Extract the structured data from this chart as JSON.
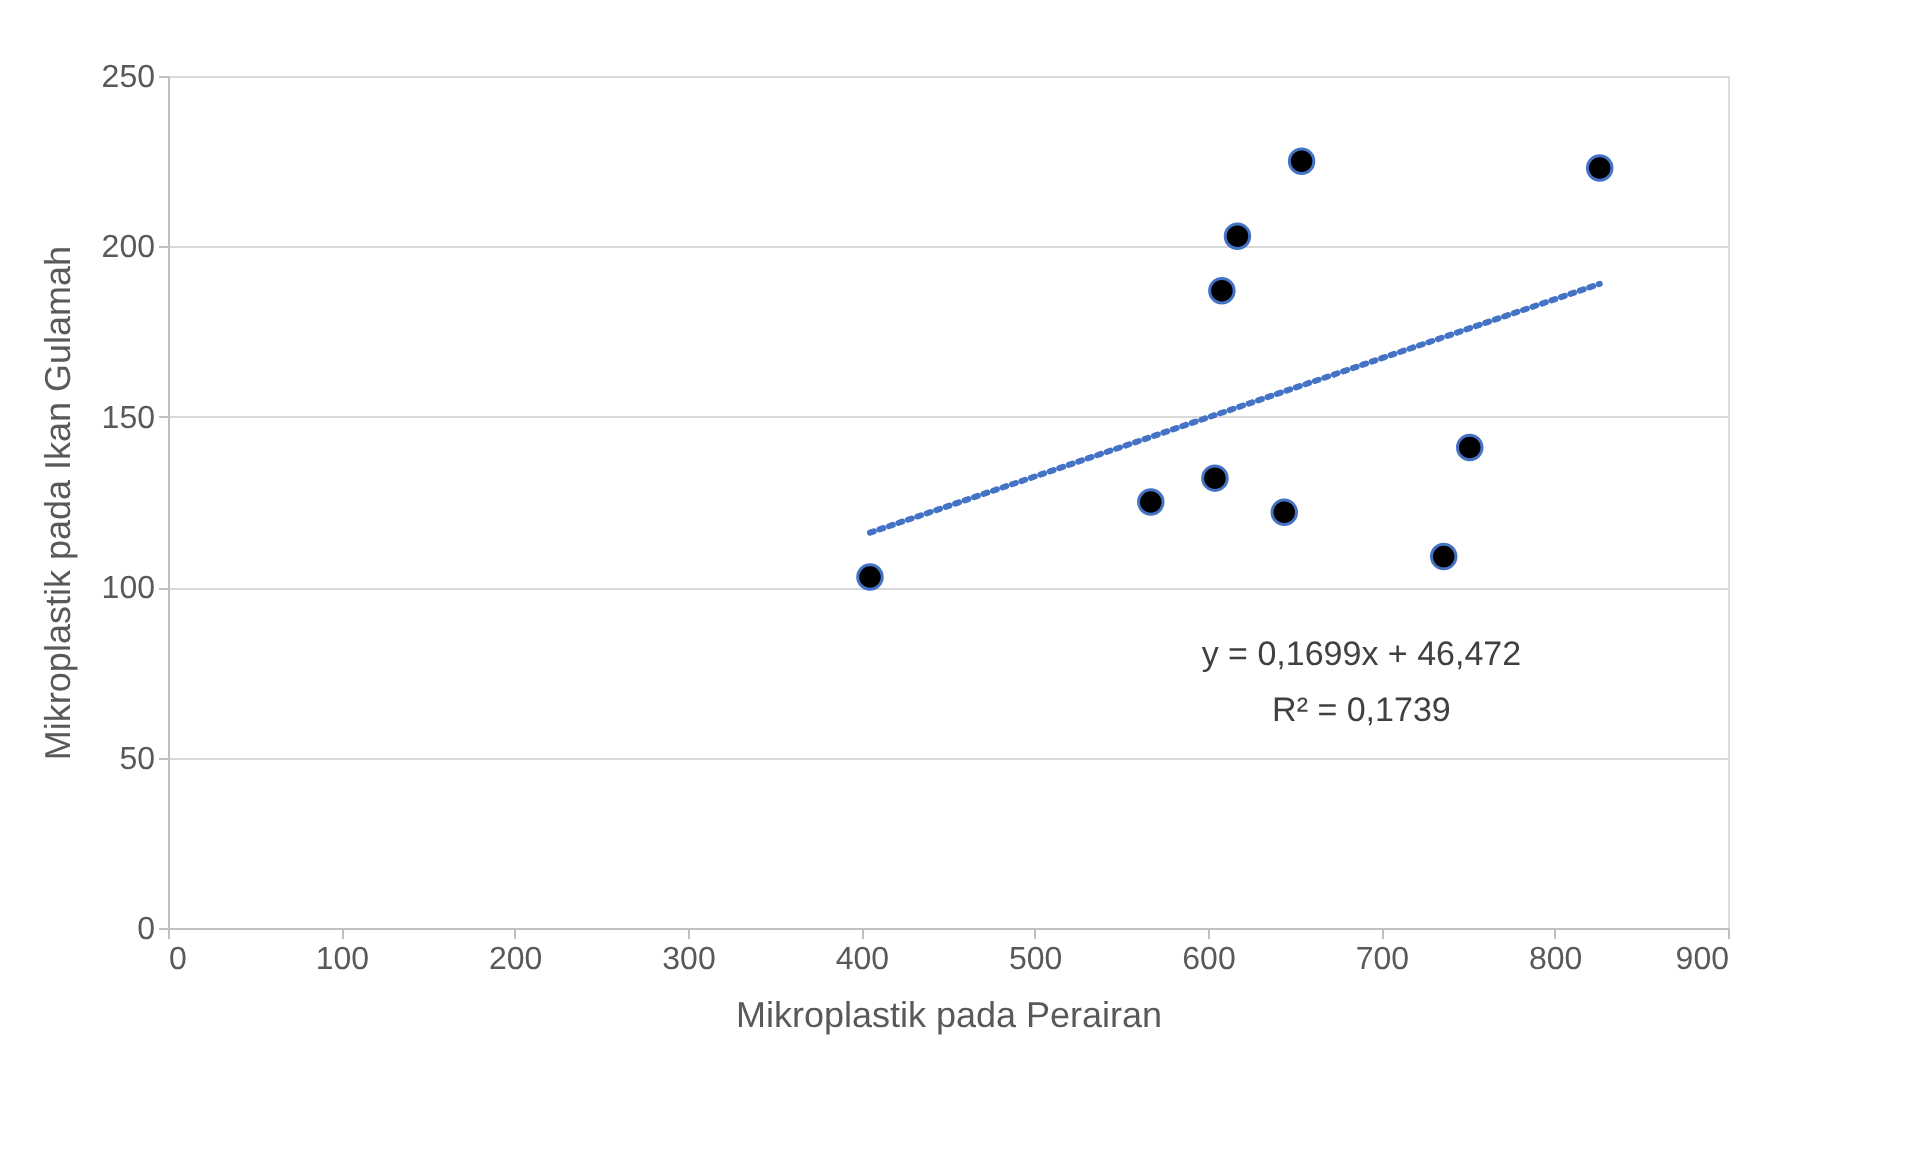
{
  "chart_data": {
    "type": "scatter",
    "xlabel": "Mikroplastik pada Perairan",
    "ylabel": "Mikroplastik pada Ikan Gulamah",
    "xlim": [
      0,
      900
    ],
    "xticks": [
      0,
      100,
      200,
      300,
      400,
      500,
      600,
      700,
      800,
      900
    ],
    "ylim": [
      0,
      250
    ],
    "yticks": [
      0,
      50,
      100,
      150,
      200,
      250
    ],
    "grid": "y",
    "series": [
      {
        "color": "#000000",
        "marker": "circle",
        "x": [
          405,
          567,
          604,
          644,
          608,
          617,
          654,
          736,
          751,
          826
        ],
        "values": [
          103,
          125,
          132,
          122,
          187,
          203,
          225,
          109,
          141,
          223
        ]
      },
      {
        "type": "line",
        "color": "#4472c4",
        "line_style": "dotted",
        "x": [
          405,
          826
        ],
        "values": [
          116,
          189
        ]
      }
    ],
    "annotations": [
      "y = 0,1699x + 46,472",
      "R² = 0,1739"
    ]
  }
}
